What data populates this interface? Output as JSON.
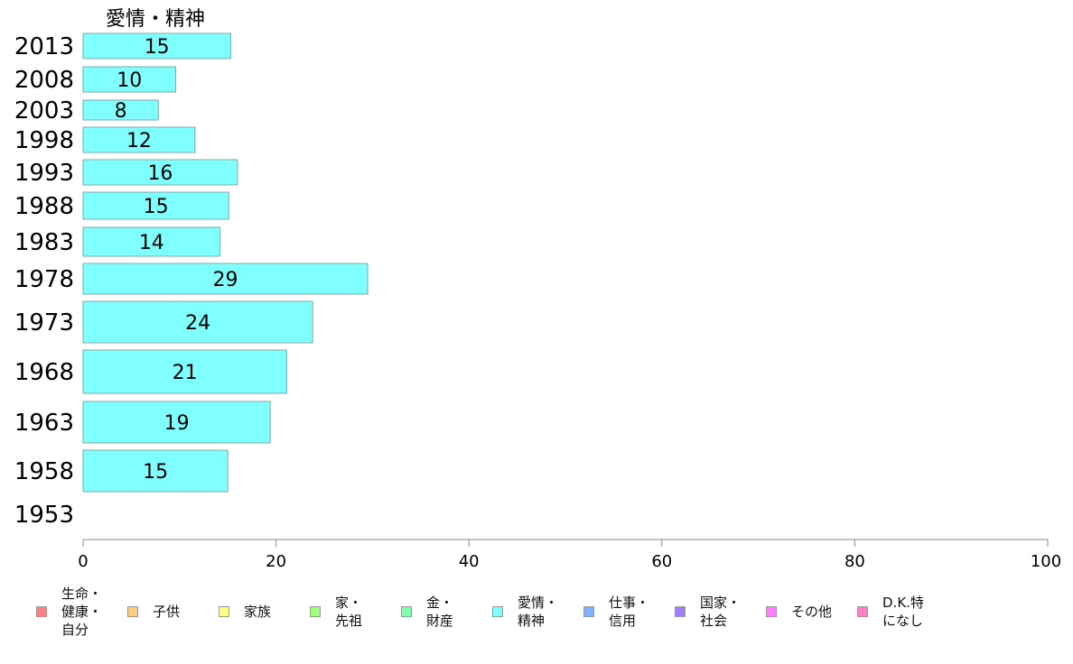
{
  "chart_data": {
    "type": "bar",
    "orientation": "horizontal",
    "series_title": "愛情・精神",
    "categories": [
      "2013",
      "2008",
      "2003",
      "1998",
      "1993",
      "1988",
      "1983",
      "1978",
      "1973",
      "1968",
      "1963",
      "1958",
      "1953"
    ],
    "series": [
      {
        "name": "愛情・精神",
        "color": "#80ffff",
        "values": [
          15.3,
          9.6,
          7.8,
          11.6,
          16.0,
          15.1,
          14.2,
          29.5,
          23.8,
          21.1,
          19.4,
          15.0,
          null
        ],
        "labels": [
          "15",
          "10",
          "8",
          "12",
          "16",
          "15",
          "14",
          "29",
          "24",
          "21",
          "19",
          "15",
          ""
        ]
      }
    ],
    "xlim": [
      0,
      100
    ],
    "xticks": [
      "0",
      "20",
      "40",
      "60",
      "80",
      "100"
    ],
    "grid": false,
    "legend_position": "bottom"
  },
  "legend": [
    {
      "label": "生命・\n健康・\n自分",
      "color": "#ff8080"
    },
    {
      "label": "子供",
      "color": "#ffcc80"
    },
    {
      "label": "家族",
      "color": "#ffff80"
    },
    {
      "label": "家・\n先祖",
      "color": "#a0ff80"
    },
    {
      "label": "金・\n財産",
      "color": "#80ffb0"
    },
    {
      "label": "愛情・\n精神",
      "color": "#80ffff"
    },
    {
      "label": "仕事・\n信用",
      "color": "#80b0ff"
    },
    {
      "label": "国家・\n社会",
      "color": "#a080ff"
    },
    {
      "label": "その他",
      "color": "#ff80ff"
    },
    {
      "label": "D.K.特\nになし",
      "color": "#ff80c0"
    }
  ]
}
